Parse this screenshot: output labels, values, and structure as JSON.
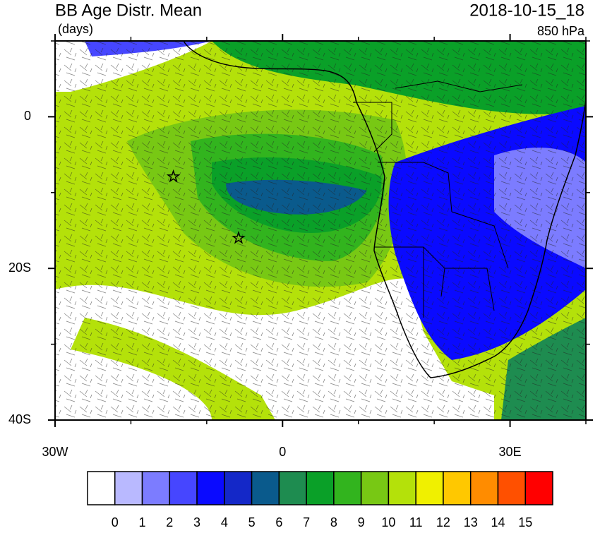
{
  "map": {
    "title": "BB Age Distr. Mean",
    "units": "(days)",
    "date": "2018-10-15_18",
    "level": "850 hPa",
    "xlim": [
      -30,
      40
    ],
    "ylim": [
      -40,
      10
    ],
    "xticks": [
      {
        "value": -30,
        "label": "30W"
      },
      0,
      {
        "value": 30,
        "label": "30E"
      }
    ],
    "yticks": [
      0,
      {
        "value": -20,
        "label": "20S"
      },
      {
        "value": -40,
        "label": "40S"
      }
    ],
    "minor_xticks": [
      -20,
      -10,
      10,
      20,
      40
    ],
    "minor_yticks": [
      10,
      -10,
      -30
    ],
    "markers": [
      {
        "lon": -14.4,
        "lat": -7.9
      },
      {
        "lon": -5.8,
        "lat": -16
      }
    ]
  },
  "colorbar": {
    "labels": [
      0,
      1,
      2,
      3,
      4,
      5,
      6,
      7,
      8,
      9,
      10,
      11,
      12,
      13,
      14,
      15
    ],
    "colors": [
      "#ffffff",
      "#b9b9ff",
      "#7c7cff",
      "#4646ff",
      "#0a0aff",
      "#1428c8",
      "#0a5a8c",
      "#1e8c50",
      "#0aa028",
      "#32b41e",
      "#78c814",
      "#b4e10a",
      "#f0f000",
      "#ffc800",
      "#ff8c00",
      "#ff5000",
      "#ff0000"
    ]
  }
}
